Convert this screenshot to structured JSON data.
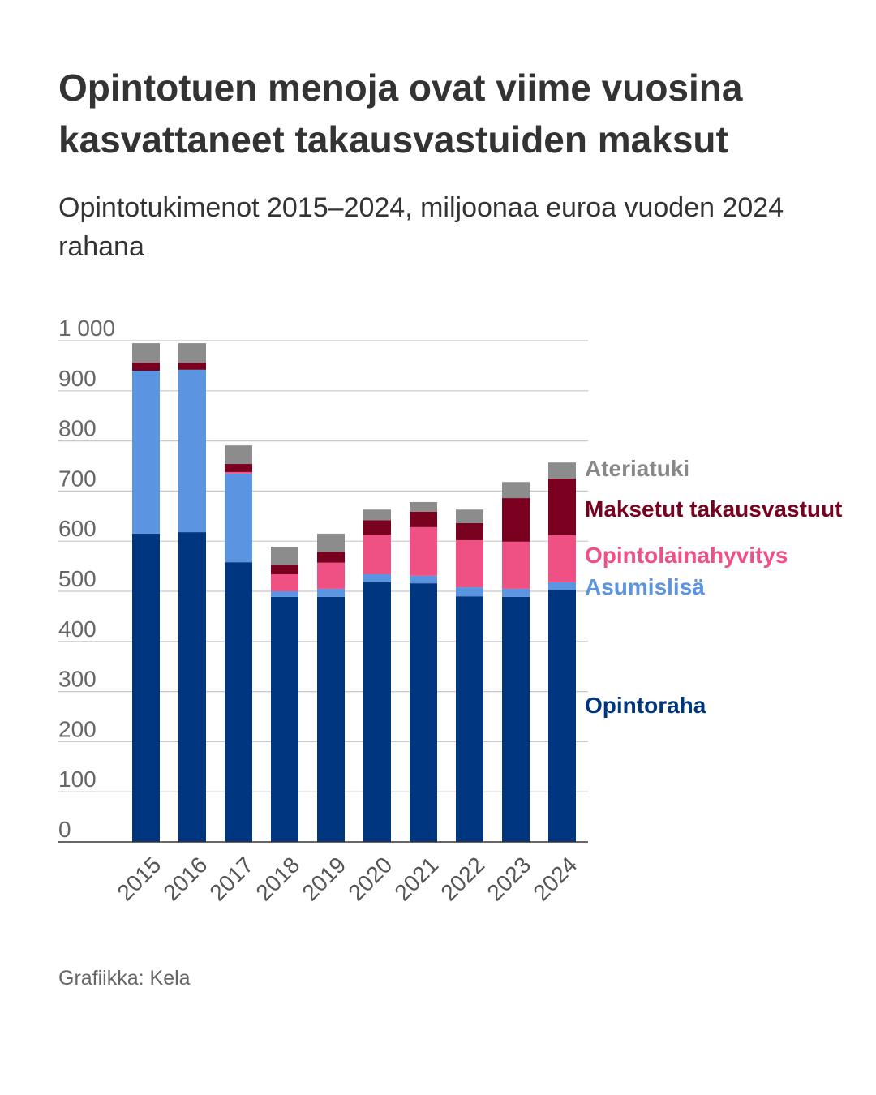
{
  "title": "Opintotuen menoja ovat viime vuosina kasvattaneet takausvastuiden maksut",
  "subtitle": "Opintotukimenot 2015–2024, miljoonaa euroa vuoden 2024 rahana",
  "credit": "Grafiikka: Kela",
  "chart_data": {
    "type": "bar",
    "stacked": true,
    "categories": [
      "2015",
      "2016",
      "2017",
      "2018",
      "2019",
      "2020",
      "2021",
      "2022",
      "2023",
      "2024"
    ],
    "series": [
      {
        "name": "Opintoraha",
        "color": "#00367F",
        "values": [
          615,
          618,
          558,
          489,
          489,
          518,
          516,
          490,
          489,
          503
        ]
      },
      {
        "name": "Asumislisä",
        "color": "#5B95E2",
        "values": [
          325,
          324,
          177,
          11,
          16,
          16,
          15,
          18,
          16,
          15
        ]
      },
      {
        "name": "Opintolainahyvitys",
        "color": "#F05185",
        "values": [
          0,
          0,
          3,
          34,
          52,
          79,
          97,
          94,
          94,
          94
        ]
      },
      {
        "name": "Maksetut takausvastuut",
        "color": "#7A0020",
        "values": [
          16,
          14,
          16,
          19,
          22,
          29,
          31,
          34,
          87,
          113
        ]
      },
      {
        "name": "Ateriatuki",
        "color": "#8C8C8C",
        "values": [
          39,
          39,
          37,
          36,
          36,
          21,
          19,
          27,
          32,
          32
        ]
      }
    ],
    "yticks": [
      0,
      100,
      200,
      300,
      400,
      500,
      600,
      700,
      800,
      900,
      1000
    ],
    "ytick_labels": [
      "0",
      "100",
      "200",
      "300",
      "400",
      "500",
      "600",
      "700",
      "800",
      "900",
      "1 000"
    ],
    "ylim": [
      0,
      1000
    ],
    "grid": true,
    "legend": "right, inline labels"
  }
}
